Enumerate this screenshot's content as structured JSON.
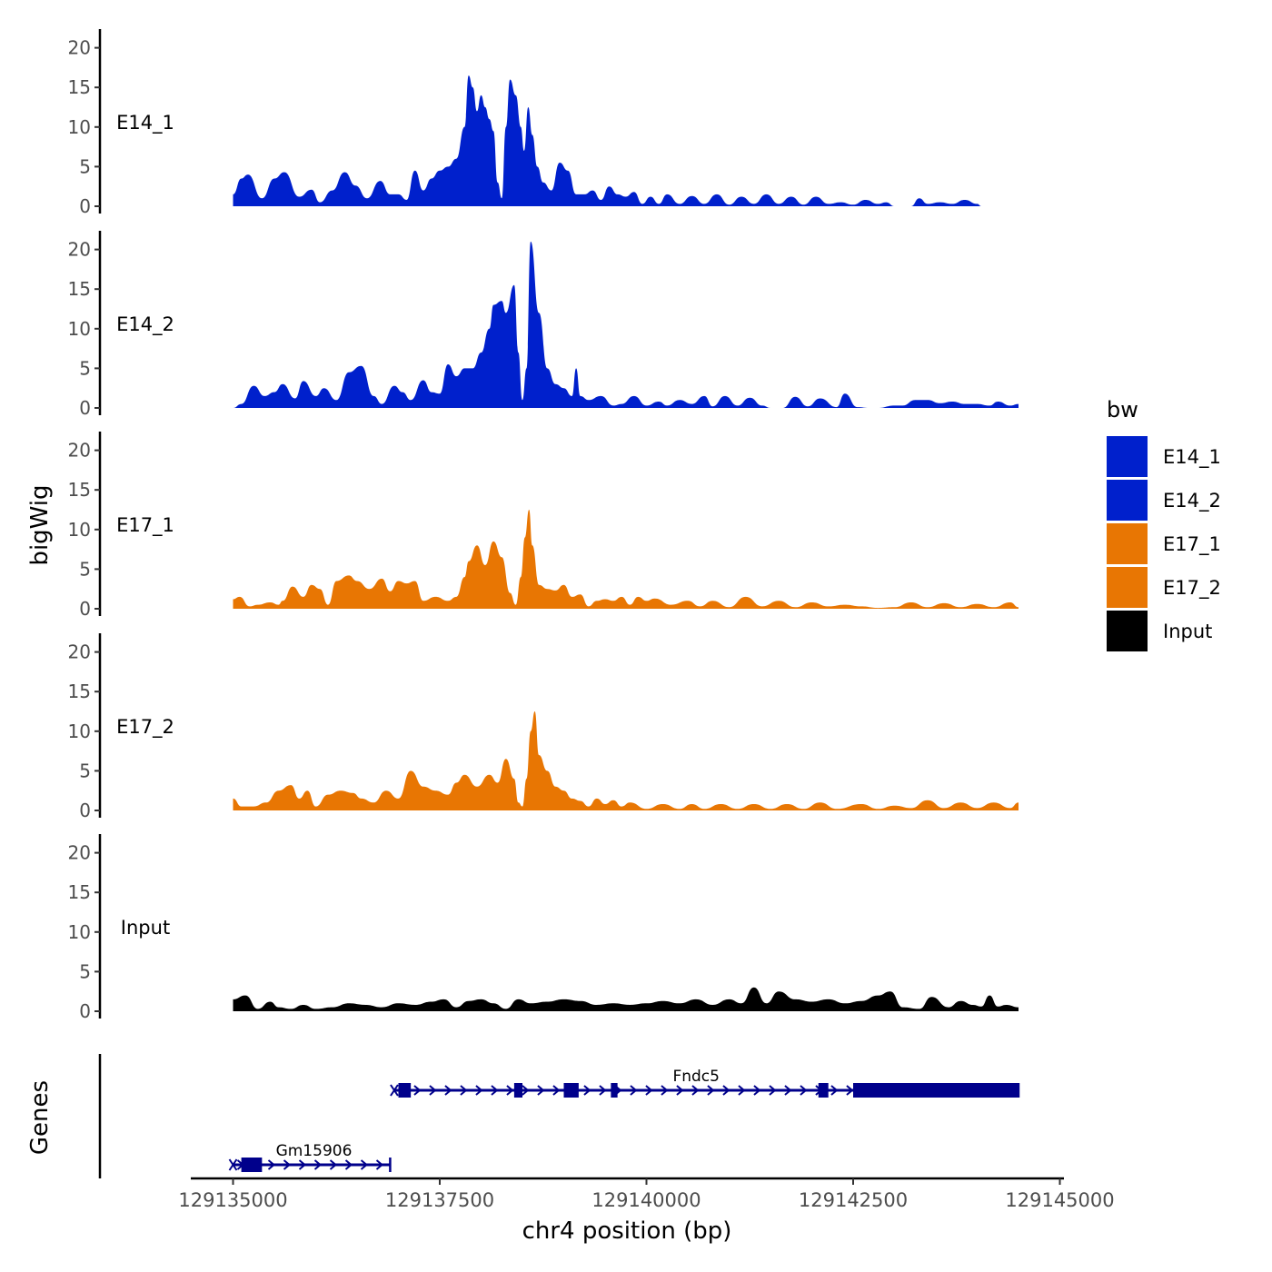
{
  "chart_data": {
    "type": "area",
    "ylabel": "bigWig",
    "genes_label": "Genes",
    "xlabel": "chr4 position (bp)",
    "x_range": [
      129135000,
      129144500
    ],
    "x_ticks": [
      129135000,
      129137500,
      129140000,
      129142500,
      129145000
    ],
    "x_tick_labels": [
      "129135000",
      "129137500",
      "129140000",
      "129142500",
      "129145000"
    ],
    "ylim": [
      0,
      22
    ],
    "y_ticks": [
      0,
      5,
      10,
      15,
      20
    ],
    "y_tick_labels": [
      "0",
      "5",
      "10",
      "15",
      "20"
    ],
    "legend": {
      "title": "bw",
      "position": "right",
      "entries": [
        {
          "label": "E14_1",
          "color": "#0020CC"
        },
        {
          "label": "E14_2",
          "color": "#0020CC"
        },
        {
          "label": "E17_1",
          "color": "#E87603"
        },
        {
          "label": "E17_2",
          "color": "#E87603"
        },
        {
          "label": "Input",
          "color": "#000000"
        }
      ]
    },
    "series": [
      {
        "name": "E14_1",
        "color": "#0020CC",
        "x": [
          129135000,
          129135100,
          129135180,
          129135350,
          129135500,
          129135620,
          129135800,
          129135950,
          129136050,
          129136200,
          129136350,
          129136480,
          129136620,
          129136780,
          129136900,
          129137000,
          129137100,
          129137200,
          129137300,
          129137400,
          129137500,
          129137600,
          129137700,
          129137800,
          129137850,
          129137900,
          129137950,
          129138000,
          129138050,
          129138100,
          129138150,
          129138200,
          129138250,
          129138300,
          129138350,
          129138420,
          129138480,
          129138520,
          129138570,
          129138620,
          129138680,
          129138750,
          129138850,
          129138950,
          129139050,
          129139150,
          129139250,
          129139350,
          129139450,
          129139550,
          129139650,
          129139750,
          129139850,
          129139950,
          129140050,
          129140150,
          129140250,
          129140400,
          129140550,
          129140700,
          129140850,
          129141000,
          129141150,
          129141300,
          129141450,
          129141600,
          129141750,
          129141900,
          129142050,
          129142200,
          129142350,
          129142500,
          129142650,
          129142800,
          129142900,
          129143000,
          129143200,
          129143300,
          129143400,
          129143550,
          129143700,
          129143850,
          129144000,
          129144050
        ],
        "y": [
          1.5,
          3.5,
          4,
          1,
          3.5,
          4.3,
          1.2,
          2.1,
          0.5,
          2,
          4.3,
          2.6,
          1,
          3.2,
          1.5,
          1.5,
          0.8,
          4.5,
          2,
          3.5,
          4.5,
          5,
          6,
          10,
          16.5,
          15,
          12,
          14,
          12.5,
          11,
          9.5,
          3,
          1,
          10,
          16,
          14,
          10,
          7,
          12.5,
          9,
          5,
          3,
          2,
          5.5,
          4.5,
          1.5,
          1.5,
          2,
          0.8,
          2.5,
          1.5,
          1.2,
          1.8,
          0.3,
          1.2,
          0.3,
          1.5,
          0.3,
          1.3,
          0.3,
          1.5,
          0.2,
          1.2,
          0.3,
          1.5,
          0.3,
          1.2,
          0.2,
          1.2,
          0.3,
          0.5,
          0.2,
          0.8,
          0.3,
          0.5,
          0,
          0,
          1,
          0.3,
          0.5,
          0.3,
          0.8,
          0.3,
          0
        ]
      },
      {
        "name": "E14_2",
        "color": "#0020CC",
        "x": [
          129135000,
          129135100,
          129135250,
          129135380,
          129135500,
          129135600,
          129135750,
          129135850,
          129136000,
          129136100,
          129136250,
          129136400,
          129136550,
          129136700,
          129136800,
          129136950,
          129137050,
          129137150,
          129137300,
          129137400,
          129137500,
          129137600,
          129137700,
          129137800,
          129137900,
          129138000,
          129138100,
          129138150,
          129138250,
          129138300,
          129138400,
          129138450,
          129138500,
          129138550,
          129138600,
          129138700,
          129138800,
          129138900,
          129139000,
          129139100,
          129139150,
          129139200,
          129139300,
          129139450,
          129139600,
          129139700,
          129139850,
          129140000,
          129140150,
          129140250,
          129140400,
          129140550,
          129140700,
          129140800,
          129140950,
          129141100,
          129141250,
          129141400,
          129141500,
          129141650,
          129141800,
          129141950,
          129142100,
          129142300,
          129142400,
          129142550,
          129142700,
          129142800,
          129143000,
          129143100,
          129143250,
          129143400,
          129143550,
          129143700,
          129143850,
          129144000,
          129144150,
          129144250,
          129144400,
          129144500
        ],
        "y": [
          0,
          0.5,
          2.8,
          1.5,
          2,
          3,
          1.2,
          3.4,
          1.5,
          2.5,
          1,
          4.5,
          5.3,
          1.5,
          0.5,
          2.8,
          2,
          1,
          3.5,
          2,
          1.8,
          5.5,
          4,
          5,
          5,
          7,
          10,
          13,
          13.5,
          12,
          15.5,
          7,
          1,
          5,
          21,
          12,
          5,
          3,
          2.5,
          1.5,
          5,
          1.5,
          1,
          1.5,
          0.3,
          0.5,
          1.5,
          0.3,
          0.8,
          0.3,
          1,
          0.5,
          1.5,
          0.2,
          1.5,
          0.3,
          1.3,
          0.3,
          0,
          0,
          1.4,
          0.2,
          1.2,
          0.1,
          1.8,
          0.1,
          0,
          0,
          0.3,
          0.3,
          1,
          1,
          0.6,
          0.8,
          0.5,
          0.5,
          0.3,
          0.8,
          0.3,
          0.5
        ]
      },
      {
        "name": "E17_1",
        "color": "#E87603",
        "x": [
          129135000,
          129135080,
          129135200,
          129135300,
          129135450,
          129135550,
          129135600,
          129135720,
          129135850,
          129135950,
          129136050,
          129136150,
          129136250,
          129136400,
          129136500,
          129136650,
          129136800,
          129136900,
          129137000,
          129137100,
          129137200,
          129137300,
          129137450,
          129137600,
          129137700,
          129137800,
          129137850,
          129137950,
          129138050,
          129138150,
          129138250,
          129138350,
          129138420,
          129138480,
          129138530,
          129138580,
          129138620,
          129138700,
          129138800,
          129138900,
          129139000,
          129139100,
          129139200,
          129139300,
          129139400,
          129139500,
          129139600,
          129139700,
          129139800,
          129139900,
          129140000,
          129140100,
          129140300,
          129140500,
          129140650,
          129140800,
          129141000,
          129141200,
          129141400,
          129141600,
          129141800,
          129142000,
          129142200,
          129142400,
          129142600,
          129142800,
          129143000,
          129143200,
          129143400,
          129143600,
          129143800,
          129144000,
          129144200,
          129144400,
          129144500
        ],
        "y": [
          1.2,
          1.5,
          0.3,
          0.5,
          0.8,
          0.5,
          1,
          2.8,
          1.5,
          3,
          2.5,
          0.5,
          3.5,
          4.2,
          3.5,
          2.5,
          3.8,
          2.2,
          3.5,
          3.2,
          3.5,
          1,
          1.5,
          1,
          1.5,
          4,
          6,
          8,
          5.5,
          8.5,
          6.5,
          2,
          0.5,
          4,
          9,
          12.5,
          8,
          3,
          2.5,
          2.3,
          3,
          1.5,
          1.8,
          0.3,
          1,
          1.2,
          1,
          1.5,
          0.5,
          1.5,
          1,
          1.3,
          0.5,
          1,
          0.3,
          1,
          0.2,
          1.5,
          0.3,
          1,
          0.2,
          0.8,
          0.3,
          0.5,
          0.3,
          0.1,
          0.2,
          0.8,
          0.2,
          0.7,
          0.2,
          0.6,
          0.2,
          0.8,
          0.2
        ]
      },
      {
        "name": "E17_2",
        "color": "#E87603",
        "x": [
          129135000,
          129135100,
          129135250,
          129135400,
          129135550,
          129135700,
          129135800,
          129135900,
          129136000,
          129136150,
          129136300,
          129136450,
          129136550,
          129136700,
          129136850,
          129137000,
          129137150,
          129137300,
          129137450,
          129137600,
          129137700,
          129137800,
          129137950,
          129138100,
          129138200,
          129138300,
          129138400,
          129138450,
          129138500,
          129138550,
          129138600,
          129138650,
          129138700,
          129138800,
          129138900,
          129139000,
          129139100,
          129139200,
          129139300,
          129139400,
          129139500,
          129139600,
          129139700,
          129139800,
          129140000,
          129140200,
          129140400,
          129140550,
          129140700,
          129140900,
          129141100,
          129141300,
          129141500,
          129141700,
          129141900,
          129142100,
          129142300,
          129142600,
          129142800,
          129143000,
          129143200,
          129143400,
          129143600,
          129143800,
          129144000,
          129144200,
          129144400,
          129144500
        ],
        "y": [
          1.5,
          0.5,
          0.5,
          1,
          2.5,
          3.2,
          1.5,
          2.5,
          0.5,
          2,
          2.5,
          2.2,
          1.5,
          1,
          2.5,
          1.5,
          5,
          3,
          2.5,
          2,
          3.5,
          4.5,
          3,
          4.5,
          3.5,
          6.5,
          4,
          1,
          0.5,
          4,
          10,
          12.5,
          7,
          5,
          3,
          2.5,
          1.5,
          1.2,
          0.5,
          1.5,
          0.8,
          1.3,
          0.5,
          1,
          0.2,
          0.8,
          0.2,
          0.8,
          0.2,
          0.8,
          0.2,
          0.8,
          0.2,
          0.8,
          0.2,
          1,
          0.2,
          0.8,
          0.2,
          0.6,
          0.3,
          1.3,
          0.3,
          1,
          0.3,
          1,
          0.3,
          1
        ]
      },
      {
        "name": "Input",
        "color": "#000000",
        "x": [
          129135000,
          129135150,
          129135300,
          129135450,
          129135550,
          129135700,
          129135850,
          129136000,
          129136200,
          129136400,
          129136600,
          129136800,
          129137000,
          129137200,
          129137400,
          129137550,
          129137700,
          129137850,
          129138000,
          129138150,
          129138300,
          129138450,
          129138600,
          129138800,
          129139000,
          129139200,
          129139400,
          129139600,
          129139800,
          129140000,
          129140200,
          129140400,
          129140600,
          129140800,
          129141000,
          129141150,
          129141300,
          129141450,
          129141600,
          129141800,
          129142000,
          129142200,
          129142400,
          129142600,
          129142800,
          129142950,
          129143100,
          129143300,
          129143450,
          129143650,
          129143800,
          129143950,
          129144050,
          129144150,
          129144250,
          129144350,
          129144500
        ],
        "y": [
          1.5,
          2,
          0.3,
          1.2,
          0.5,
          0.3,
          0.8,
          0.3,
          0.5,
          1,
          0.8,
          0.5,
          1,
          0.8,
          1.2,
          1.5,
          0.5,
          1.3,
          1.5,
          1,
          0.3,
          1.5,
          1,
          1.2,
          1.5,
          1.3,
          0.8,
          1,
          0.8,
          1,
          1.3,
          1,
          1.5,
          0.8,
          1.5,
          1,
          3,
          1,
          2.5,
          1.5,
          1.2,
          1.5,
          1,
          1.3,
          2,
          2.5,
          0.5,
          0.3,
          1.8,
          0.5,
          1.3,
          0.8,
          0.6,
          2,
          0.6,
          0.8,
          0.5
        ]
      }
    ],
    "genes": [
      {
        "name": "Fndc5",
        "strand": "+",
        "start": 129136950,
        "end": 129144500,
        "exons": [
          [
            129137000,
            129137150
          ],
          [
            129138400,
            129138500
          ],
          [
            129139000,
            129139180
          ],
          [
            129139570,
            129139650
          ],
          [
            129142080,
            129142200
          ],
          [
            129142500,
            129144500
          ]
        ]
      },
      {
        "name": "Gm15906",
        "strand": "+",
        "start": 129135000,
        "end": 129136900,
        "exons": [
          [
            129135100,
            129135350
          ]
        ]
      }
    ]
  }
}
